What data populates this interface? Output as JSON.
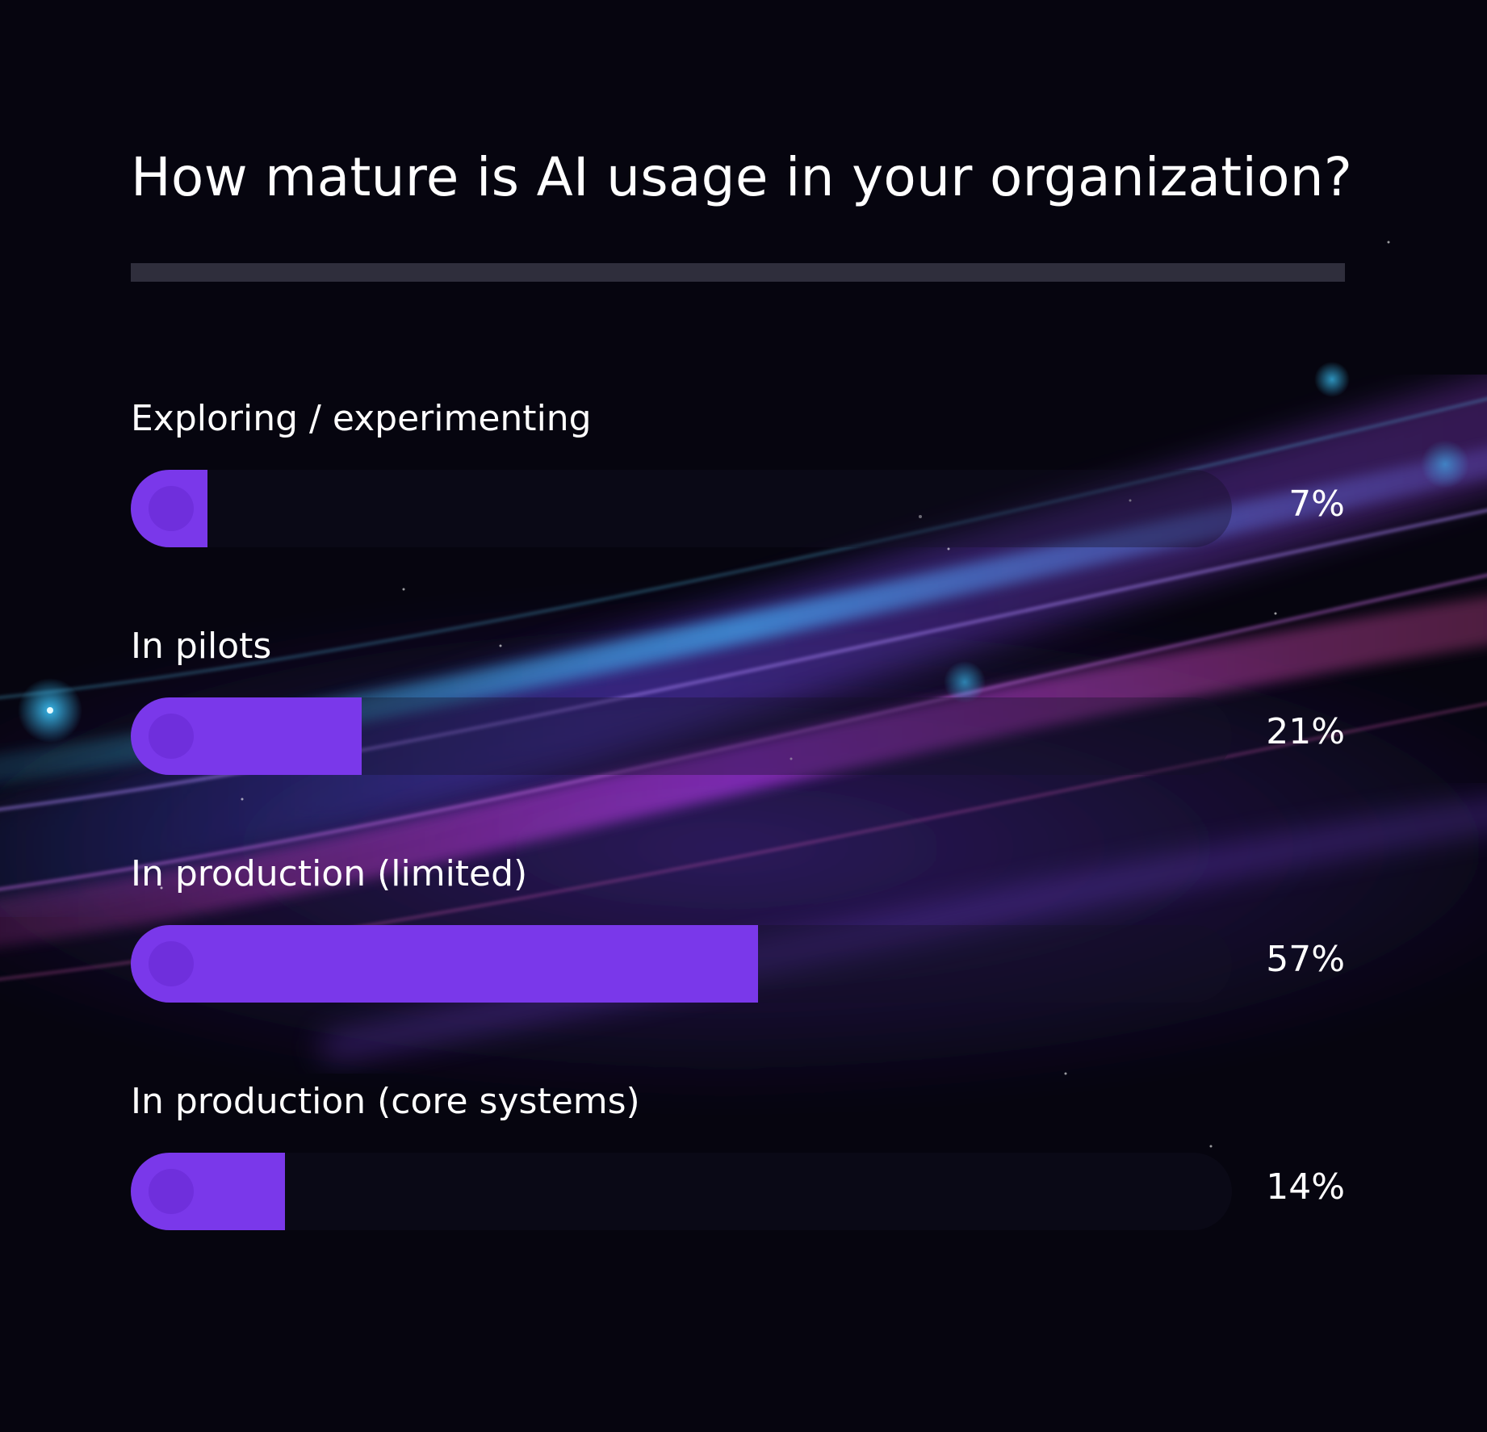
{
  "title": "How mature is AI usage in your organization?",
  "theme": {
    "bar_color": "#7a38ea",
    "background": "#06050f",
    "divider_color": "#2f2e3c"
  },
  "chart_data": {
    "type": "bar",
    "orientation": "horizontal",
    "title": "How mature is AI usage in your organization?",
    "xlim": [
      0,
      100
    ],
    "categories": [
      "Exploring / experimenting",
      "In pilots",
      "In production (limited)",
      "In production (core systems)"
    ],
    "values": [
      7,
      21,
      57,
      14
    ],
    "value_labels": [
      "7%",
      "21%",
      "57%",
      "14%"
    ]
  }
}
